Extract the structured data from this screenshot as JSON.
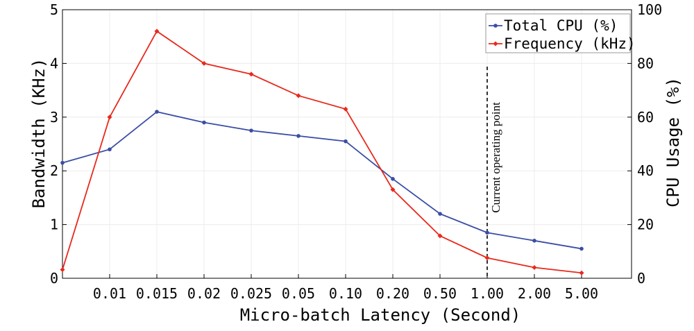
{
  "chart_data": {
    "type": "line",
    "title": "",
    "xlabel": "Micro-batch Latency (Second)",
    "ylabel_left": "Bandwidth (KHz)",
    "ylabel_right": "CPU Usage (%)",
    "categories": [
      "",
      "0.01",
      "0.015",
      "0.02",
      "0.025",
      "0.05",
      "0.10",
      "0.20",
      "0.50",
      "1.00",
      "2.00",
      "5.00"
    ],
    "tick_labels": [
      "0.01",
      "0.015",
      "0.02",
      "0.025",
      "0.05",
      "0.10",
      "0.20",
      "0.50",
      "1.00",
      "2.00",
      "5.00"
    ],
    "ylim_left": [
      0,
      5
    ],
    "ylim_right": [
      0,
      100
    ],
    "yticks_left": [
      "0",
      "1",
      "2",
      "3",
      "4",
      "5"
    ],
    "yticks_right": [
      "0",
      "20",
      "40",
      "60",
      "80",
      "100"
    ],
    "grid": true,
    "legend_position": "top-right",
    "series": [
      {
        "name": "Total CPU (%)",
        "axis": "right",
        "color": "#3a4da6",
        "marker": "circle",
        "values": [
          43,
          48,
          62,
          58,
          55,
          53,
          51,
          37,
          24,
          17,
          14,
          11
        ]
      },
      {
        "name": "Frequency (kHz)",
        "axis": "left",
        "color": "#e8291c",
        "marker": "diamond",
        "values": [
          0.16,
          3.0,
          4.6,
          4.0,
          3.8,
          3.4,
          3.15,
          1.65,
          0.79,
          0.38,
          0.2,
          0.1
        ]
      }
    ],
    "annotations": [
      {
        "text": "Current operating point",
        "x_category": "1.00",
        "style": "dashed-vertical-line"
      }
    ]
  }
}
